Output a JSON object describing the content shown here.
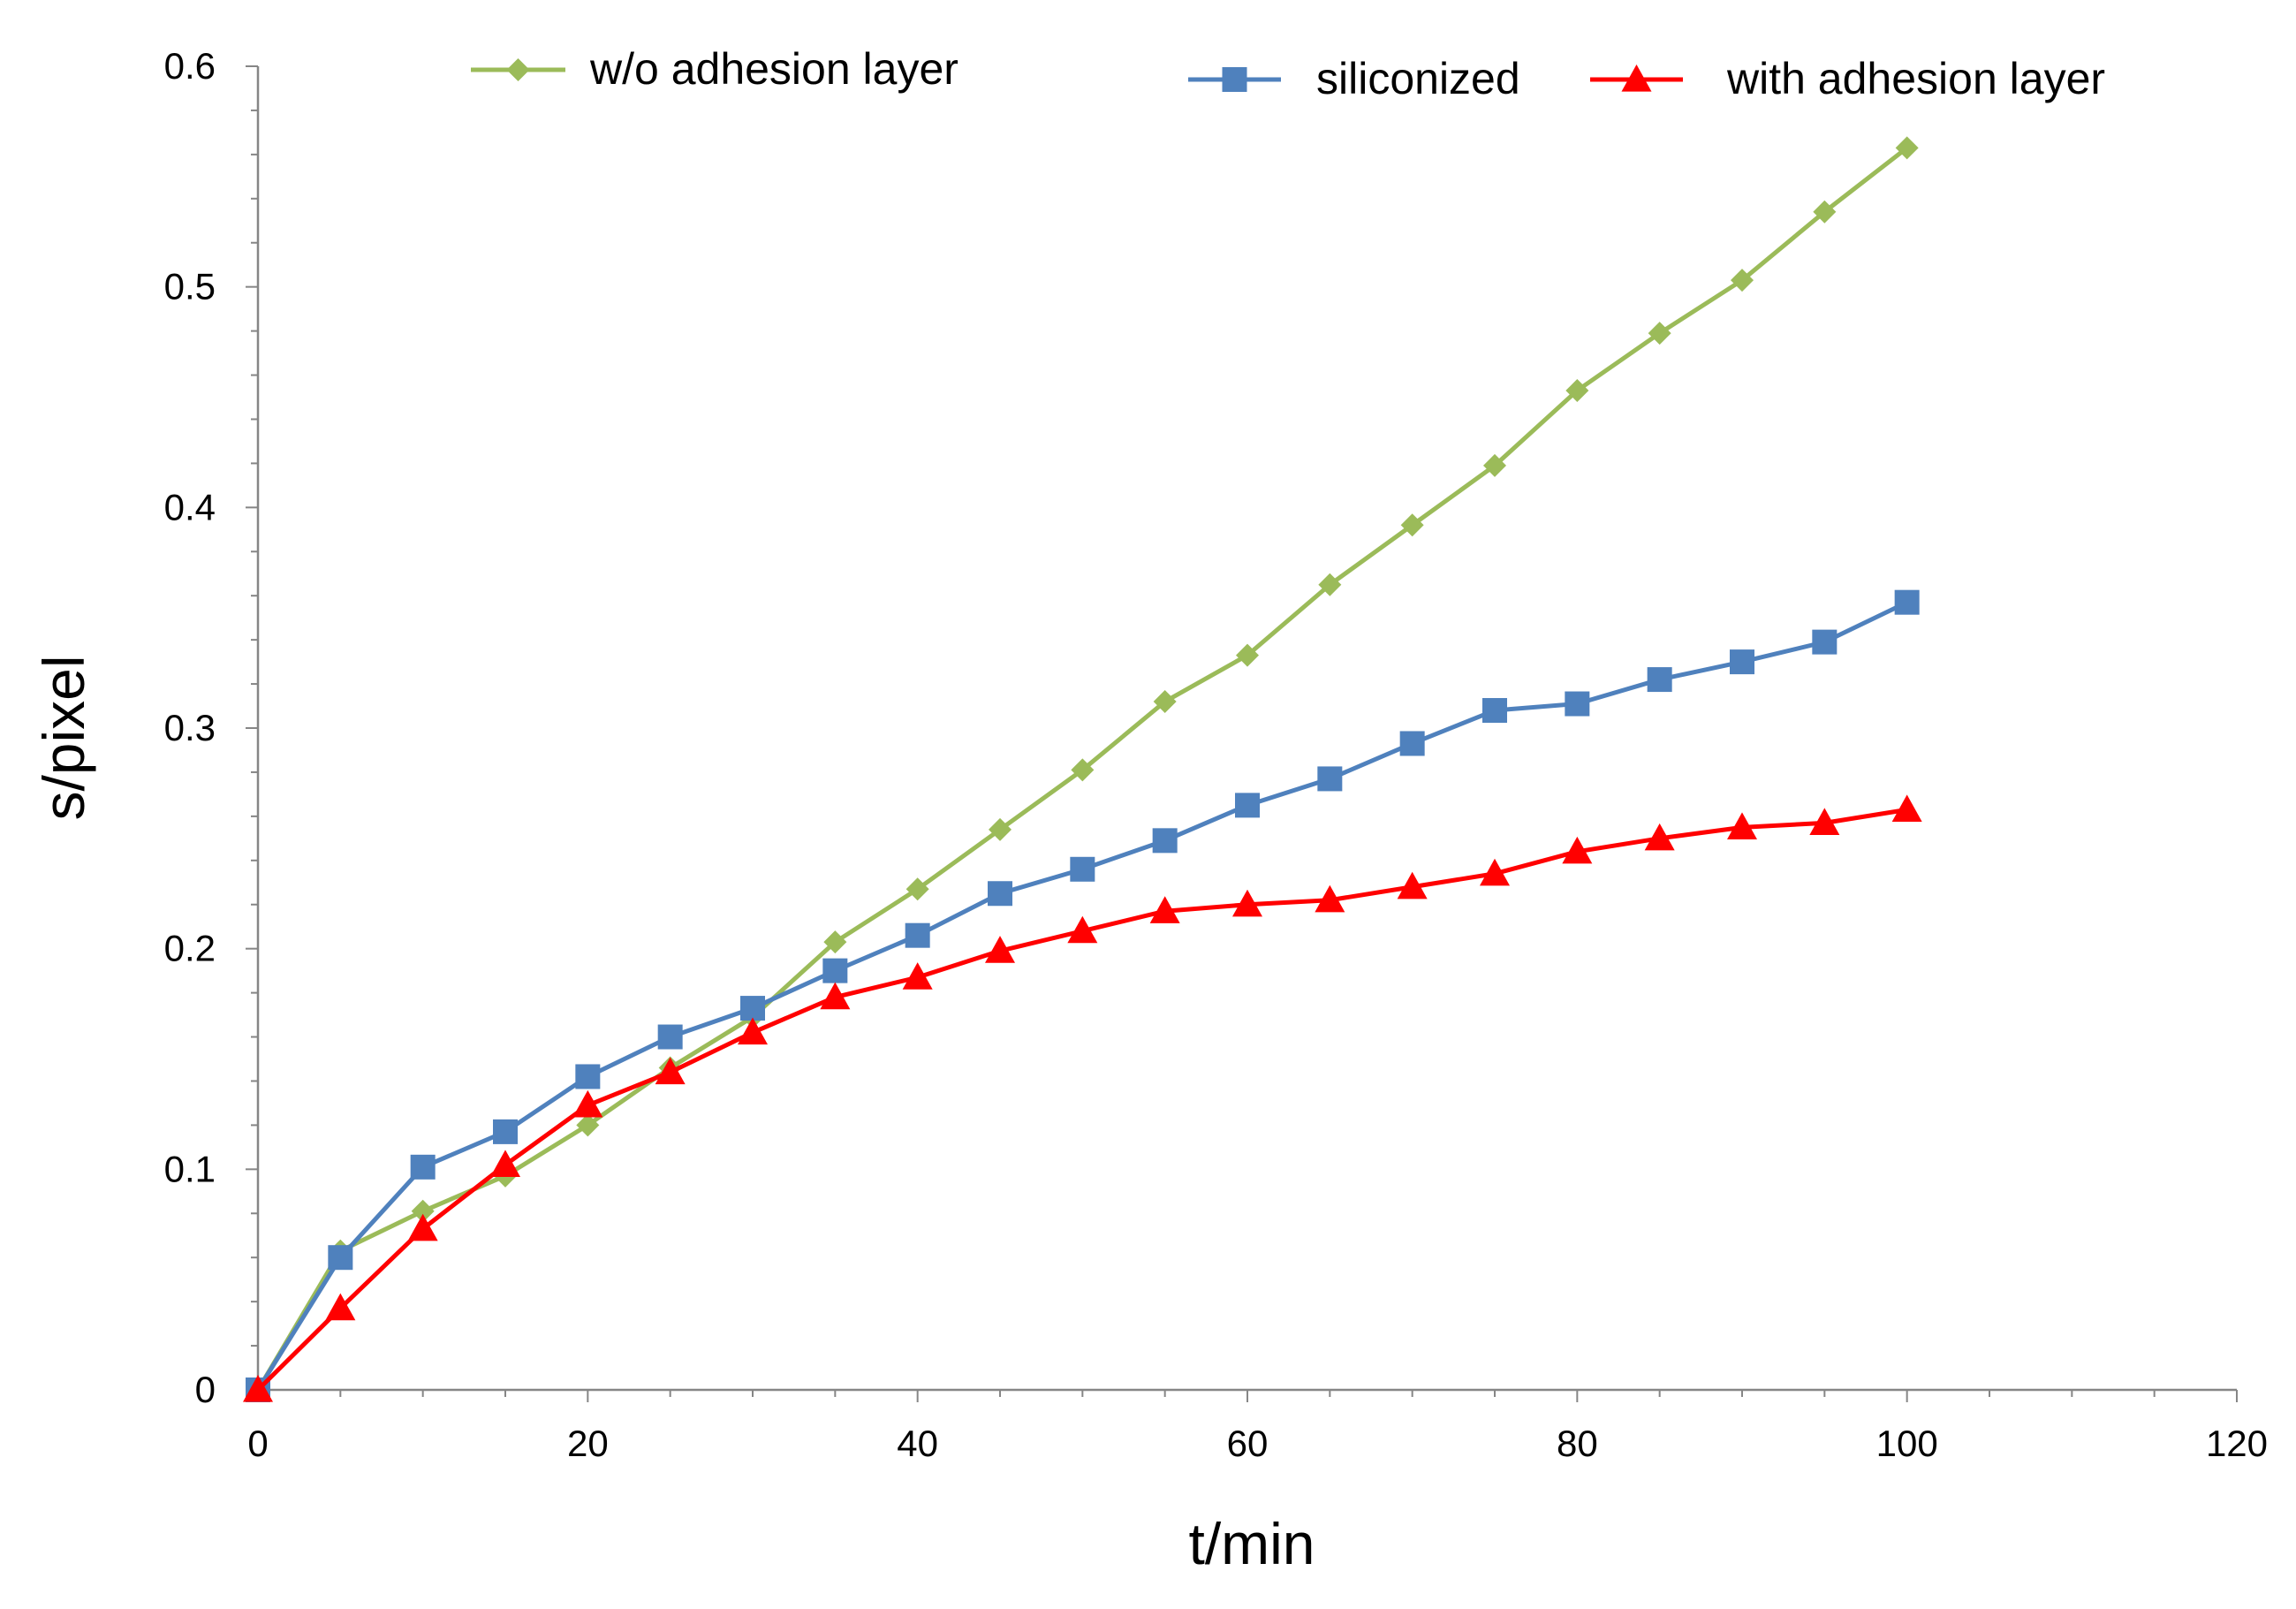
{
  "chart_data": {
    "type": "line",
    "title": "",
    "xlabel": "t/min",
    "ylabel": "s/pixel",
    "xlim": [
      0,
      120
    ],
    "ylim": [
      0,
      0.6
    ],
    "x_ticks": [
      "0",
      "20",
      "40",
      "60",
      "80",
      "100",
      "120"
    ],
    "y_ticks": [
      "0",
      "0.1",
      "0.2",
      "0.3",
      "0.4",
      "0.5",
      "0.6"
    ],
    "grid": false,
    "legend_position": "top",
    "x": [
      0,
      5,
      10,
      15,
      20,
      25,
      30,
      35,
      40,
      45,
      50,
      55,
      60,
      65,
      70,
      75,
      80,
      85,
      90,
      95,
      100
    ],
    "series": [
      {
        "name": "w/o adhesion layer",
        "marker": "diamond",
        "color": "#9BBB59",
        "values": [
          0,
          0.063,
          0.081,
          0.097,
          0.12,
          0.146,
          0.169,
          0.203,
          0.227,
          0.254,
          0.281,
          0.312,
          0.333,
          0.365,
          0.392,
          0.419,
          0.453,
          0.479,
          0.503,
          0.534,
          0.563
        ]
      },
      {
        "name": "siliconized",
        "marker": "square",
        "color": "#4F81BD",
        "values": [
          0,
          0.06,
          0.101,
          0.117,
          0.142,
          0.16,
          0.173,
          0.19,
          0.206,
          0.225,
          0.236,
          0.249,
          0.265,
          0.277,
          0.293,
          0.308,
          0.311,
          0.322,
          0.33,
          0.339,
          0.357
        ]
      },
      {
        "name": "with adhesion layer",
        "marker": "triangle",
        "color": "#FF0000",
        "values": [
          0,
          0.037,
          0.073,
          0.102,
          0.129,
          0.144,
          0.162,
          0.178,
          0.187,
          0.199,
          0.208,
          0.217,
          0.22,
          0.222,
          0.228,
          0.234,
          0.244,
          0.25,
          0.255,
          0.257,
          0.263
        ]
      }
    ]
  }
}
